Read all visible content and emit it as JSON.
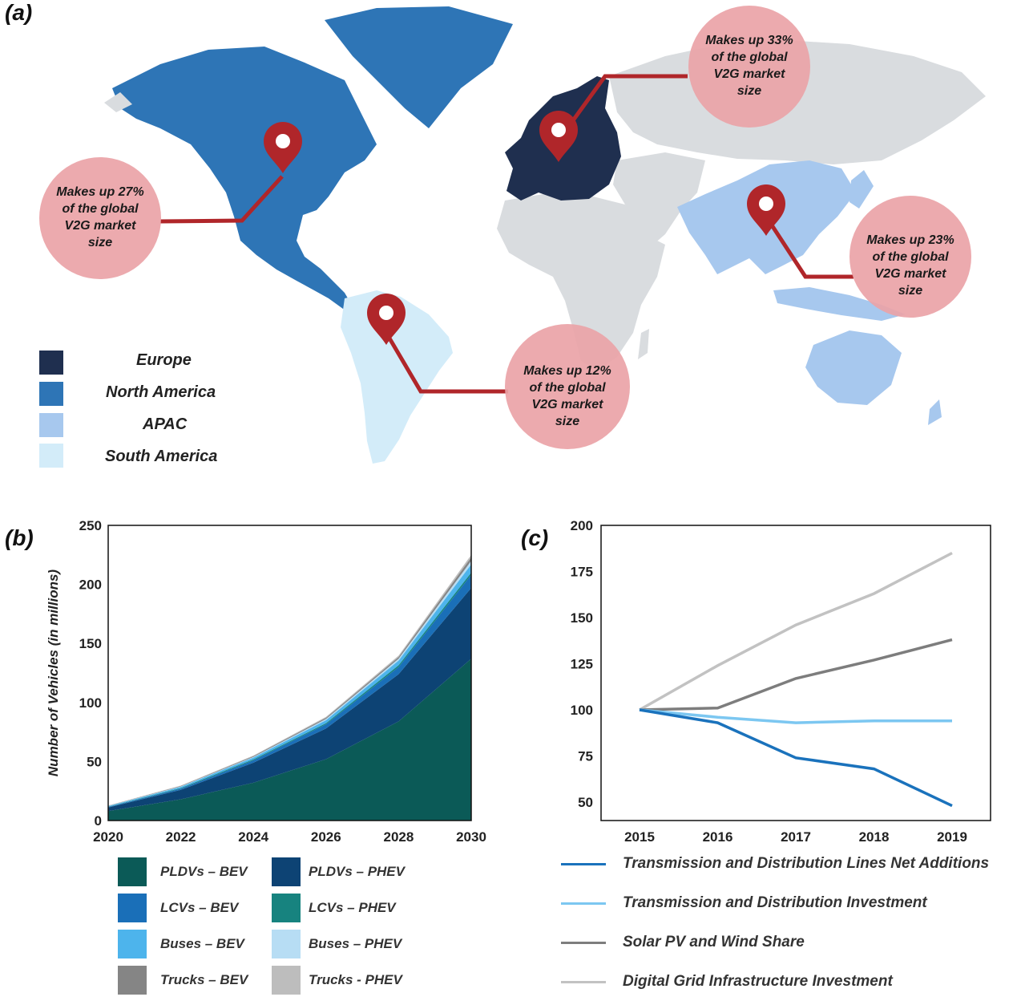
{
  "panel_a": {
    "label": "(a)",
    "legend": [
      {
        "name": "Europe",
        "color": "#1f2f4f"
      },
      {
        "name": "North America",
        "color": "#2e75b6"
      },
      {
        "name": "APAC",
        "color": "#a7c8ee"
      },
      {
        "name": "South America",
        "color": "#d3ecf9"
      }
    ],
    "callouts": [
      {
        "region": "Europe",
        "lines": [
          "Makes up 33%",
          "of the global",
          "V2G market",
          "size"
        ]
      },
      {
        "region": "North America",
        "lines": [
          "Makes up 27%",
          "of the global",
          "V2G market",
          "size"
        ]
      },
      {
        "region": "APAC",
        "lines": [
          "Makes up 23%",
          "of the global",
          "V2G market",
          "size"
        ]
      },
      {
        "region": "South America",
        "lines": [
          "Makes up 12%",
          "of the global",
          "V2G market",
          "size"
        ]
      }
    ],
    "colors": {
      "other_land": "#d9dcdf",
      "bubble": "#eaa3a7",
      "pin": "#b0262a"
    }
  },
  "panel_b": {
    "label": "(b)"
  },
  "panel_c": {
    "label": "(c)"
  },
  "chart_data": [
    {
      "type": "area",
      "stacked": true,
      "ylabel": "Number of Vehicles (in millions)",
      "xlabel": "",
      "ylim": [
        0,
        250
      ],
      "yticks": [
        0,
        50,
        100,
        150,
        200,
        250
      ],
      "xticks": [
        "2020",
        "2022",
        "2024",
        "2026",
        "2028",
        "2030"
      ],
      "x": [
        2020,
        2022,
        2024,
        2026,
        2028,
        2030
      ],
      "series": [
        {
          "name": "PLDVs – BEV",
          "color": "#0b5a57",
          "values": [
            8,
            18,
            32,
            52,
            84,
            137
          ]
        },
        {
          "name": "PLDVs – PHEV",
          "color": "#0d4374",
          "values": [
            3,
            8,
            17,
            26,
            40,
            60
          ]
        },
        {
          "name": "LCVs – BEV",
          "color": "#1a6fb8",
          "values": [
            0.5,
            1,
            2,
            3.5,
            6,
            11
          ]
        },
        {
          "name": "LCVs – PHEV",
          "color": "#17837f",
          "values": [
            0.2,
            0.5,
            0.8,
            1,
            1.5,
            2
          ]
        },
        {
          "name": "Buses – BEV",
          "color": "#4db4ec",
          "values": [
            0.5,
            1,
            1.5,
            2.5,
            4,
            7
          ]
        },
        {
          "name": "Buses – PHEV",
          "color": "#b7ddf4",
          "values": [
            0.2,
            0.4,
            0.6,
            1,
            1.5,
            3
          ]
        },
        {
          "name": "Trucks – BEV",
          "color": "#858585",
          "values": [
            0.2,
            0.4,
            0.6,
            1,
            1.5,
            3
          ]
        },
        {
          "name": "Trucks - PHEV",
          "color": "#bdbdbd",
          "values": [
            0.2,
            0.3,
            0.5,
            0.8,
            1.2,
            2
          ]
        }
      ],
      "legend_order": [
        [
          "PLDVs – BEV",
          "PLDVs – PHEV"
        ],
        [
          "LCVs – BEV",
          "LCVs – PHEV"
        ],
        [
          "Buses – BEV",
          "Buses – PHEV"
        ],
        [
          "Trucks – BEV",
          "Trucks - PHEV"
        ]
      ]
    },
    {
      "type": "line",
      "ylim": [
        40,
        200
      ],
      "yticks": [
        50,
        75,
        100,
        125,
        150,
        175,
        200
      ],
      "x": [
        "2015",
        "2016",
        "2017",
        "2018",
        "2019"
      ],
      "series": [
        {
          "name": "Transmission and Distribution Lines Net Additions",
          "color": "#1a72bc",
          "values": [
            100,
            93,
            74,
            68,
            48
          ]
        },
        {
          "name": "Transmission and Distribution Investment",
          "color": "#7cc7f1",
          "values": [
            100,
            96,
            93,
            94,
            94
          ]
        },
        {
          "name": "Solar PV and Wind Share",
          "color": "#7d7d7d",
          "values": [
            100,
            101,
            117,
            127,
            138
          ]
        },
        {
          "name": "Digital Grid Infrastructure Investment",
          "color": "#c2c2c2",
          "values": [
            100,
            124,
            146,
            163,
            185
          ]
        }
      ]
    }
  ]
}
